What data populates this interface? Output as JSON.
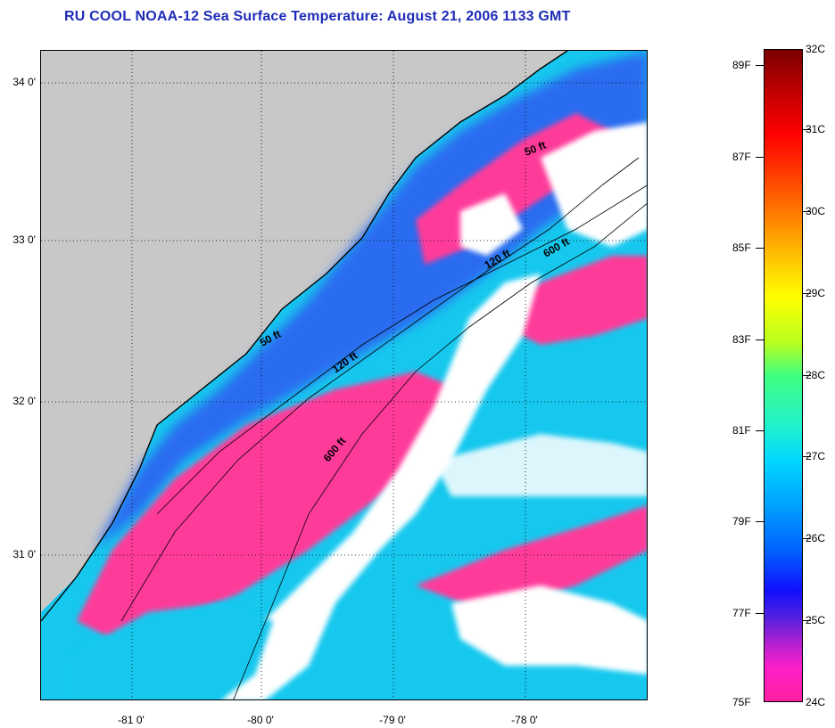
{
  "title": "RU COOL  NOAA-12  Sea Surface Temperature:  August 21, 2006 1133 GMT",
  "map": {
    "lat_labels": [
      "34 0'",
      "33 0'",
      "32 0'",
      "31 0'"
    ],
    "lon_labels": [
      "-81 0'",
      "-80 0'",
      "-79 0'",
      "-78 0'"
    ],
    "isobath_labels": [
      "50 ft",
      "120 ft",
      "600 ft",
      "50 ft",
      "120 ft",
      "600 ft"
    ],
    "colors": {
      "land": "#c8c8c8",
      "cloud": "#ffffff",
      "cool_water": "#ff3a9a",
      "blue_water": "#2a6cf0",
      "cyan_water": "#16c8ee"
    }
  },
  "colorbar": {
    "fahrenheit_labels": [
      "89F",
      "87F",
      "85F",
      "83F",
      "81F",
      "79F",
      "77F",
      "75F"
    ],
    "celsius_labels": [
      "32C",
      "31C",
      "30C",
      "29C",
      "28C",
      "27C",
      "26C",
      "25C",
      "24C"
    ]
  }
}
